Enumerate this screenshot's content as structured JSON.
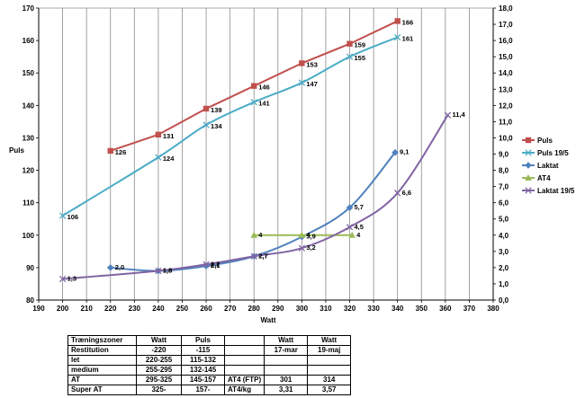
{
  "chart_data": {
    "type": "line",
    "xlabel": "Watt",
    "ylabel": "Puls",
    "xlim": [
      190,
      380
    ],
    "x_ticks": [
      190,
      200,
      210,
      220,
      230,
      240,
      250,
      260,
      270,
      280,
      290,
      300,
      310,
      320,
      330,
      340,
      350,
      360,
      370,
      380
    ],
    "ylim_left": [
      80,
      170
    ],
    "y_left_ticks": [
      80,
      90,
      100,
      110,
      120,
      130,
      140,
      150,
      160,
      170
    ],
    "ylim_right": [
      0,
      18
    ],
    "y_right_ticks": [
      "0,0",
      "1,0",
      "2,0",
      "3,0",
      "4,0",
      "5,0",
      "6,0",
      "7,0",
      "8,0",
      "9,0",
      "10,0",
      "11,0",
      "12,0",
      "13,0",
      "14,0",
      "15,0",
      "16,0",
      "17,0",
      "18,0"
    ],
    "grid": "vertical",
    "legend_position": "right",
    "series": [
      {
        "name": "Puls",
        "axis": "left",
        "color": "#c0504d",
        "marker": "square",
        "smooth": false,
        "points": [
          [
            220,
            126
          ],
          [
            240,
            131
          ],
          [
            260,
            139
          ],
          [
            280,
            146
          ],
          [
            300,
            153
          ],
          [
            320,
            159
          ],
          [
            340,
            166
          ]
        ],
        "labels": [
          "126",
          "131",
          "139",
          "146",
          "153",
          "159",
          "166"
        ]
      },
      {
        "name": "Puls 19/5",
        "axis": "left",
        "color": "#4bacc6",
        "marker": "x",
        "smooth": true,
        "points": [
          [
            200,
            106
          ],
          [
            240,
            124
          ],
          [
            260,
            134
          ],
          [
            280,
            141
          ],
          [
            300,
            147
          ],
          [
            320,
            155
          ],
          [
            340,
            161
          ]
        ],
        "labels": [
          "106",
          "124",
          "134",
          "141",
          "147",
          "155",
          "161"
        ]
      },
      {
        "name": "Laktat",
        "axis": "right",
        "color": "#4f81bd",
        "marker": "diamond",
        "smooth": true,
        "points": [
          [
            220,
            2.0
          ],
          [
            240,
            1.8
          ],
          [
            260,
            2.1
          ],
          [
            280,
            2.7
          ],
          [
            300,
            3.9
          ],
          [
            320,
            5.7
          ],
          [
            339,
            9.1
          ]
        ],
        "labels": [
          "2,0",
          "1,8",
          "2,1",
          "2,7",
          "3,9",
          "5,7",
          "9,1"
        ]
      },
      {
        "name": "AT4",
        "axis": "right",
        "color": "#9bbb59",
        "marker": "triangle",
        "smooth": false,
        "points": [
          [
            280,
            4
          ],
          [
            300,
            4
          ],
          [
            321,
            4
          ]
        ],
        "labels": [
          "4",
          "4",
          "4"
        ]
      },
      {
        "name": "Laktat 19/5",
        "axis": "right",
        "color": "#8064a2",
        "marker": "x",
        "smooth": true,
        "points": [
          [
            200,
            1.3
          ],
          [
            240,
            1.8
          ],
          [
            260,
            2.2
          ],
          [
            280,
            2.7
          ],
          [
            300,
            3.2
          ],
          [
            320,
            4.5
          ],
          [
            340,
            6.6
          ],
          [
            361,
            11.4
          ]
        ],
        "labels": [
          "1,3",
          "1,8",
          "2,2",
          "2,7",
          "3,2",
          "4,5",
          "6,6",
          "11,4"
        ]
      }
    ]
  },
  "table": {
    "headers": [
      "Træningszoner",
      "Watt",
      "Puls",
      "",
      "Watt",
      "Watt"
    ],
    "rows": [
      [
        "Restitution",
        "-220",
        "-115",
        "",
        "17-mar",
        "19-maj"
      ],
      [
        "let",
        "220-255",
        "115-132",
        "",
        "",
        ""
      ],
      [
        "medium",
        "255-295",
        "132-145",
        "",
        "",
        ""
      ],
      [
        "AT",
        "295-325",
        "145-157",
        "AT4  (FTP)",
        "301",
        "314"
      ],
      [
        "Super AT",
        "325-",
        "157-",
        "AT4/kg",
        "3,31",
        "3,57"
      ]
    ]
  }
}
